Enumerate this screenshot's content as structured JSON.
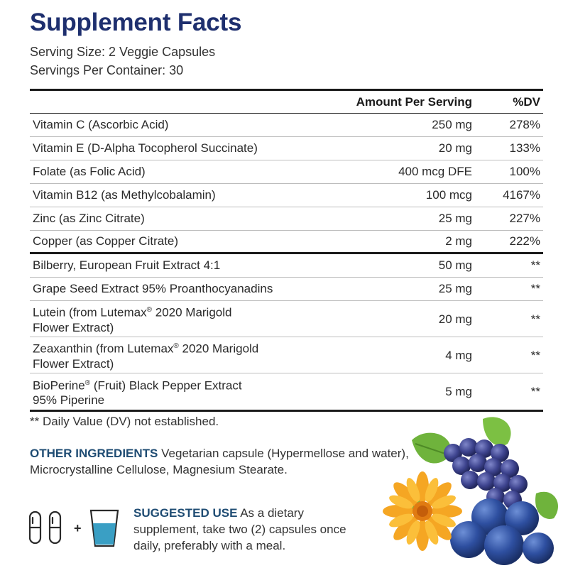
{
  "title": "Supplement Facts",
  "serving_size": "Serving Size: 2 Veggie Capsules",
  "servings_per_container": "Servings Per Container: 30",
  "table": {
    "header": {
      "amount": "Amount Per Serving",
      "dv": "%DV"
    },
    "vitamins": [
      {
        "name": "Vitamin C (Ascorbic Acid)",
        "amount": "250 mg",
        "dv": "278%"
      },
      {
        "name": "Vitamin E (D-Alpha Tocopherol Succinate)",
        "amount": "20 mg",
        "dv": "133%"
      },
      {
        "name": "Folate (as Folic Acid)",
        "amount": "400 mcg DFE",
        "dv": "100%"
      },
      {
        "name": "Vitamin B12 (as Methylcobalamin)",
        "amount": "100 mcg",
        "dv": "4167%"
      },
      {
        "name": "Zinc (as Zinc Citrate)",
        "amount": "25 mg",
        "dv": "227%"
      },
      {
        "name": "Copper (as Copper Citrate)",
        "amount": "2 mg",
        "dv": "222%"
      }
    ],
    "extracts": [
      {
        "name": "Bilberry, European Fruit Extract 4:1",
        "amount": "50 mg",
        "dv": "**"
      },
      {
        "name": "Grape Seed Extract 95% Proanthocyanadins",
        "amount": "25 mg",
        "dv": "**"
      },
      {
        "line1_pre": "Lutein (from Lutemax",
        "line1_post": " 2020 Marigold",
        "line2": "Flower Extract)",
        "amount": "20 mg",
        "dv": "**"
      },
      {
        "line1_pre": "Zeaxanthin (from Lutemax",
        "line1_post": " 2020 Marigold",
        "line2": "Flower Extract)",
        "amount": "4 mg",
        "dv": "**"
      },
      {
        "line1_pre": "BioPerine",
        "line1_post": " (Fruit) Black Pepper Extract",
        "line2": "95% Piperine",
        "amount": "5 mg",
        "dv": "**"
      }
    ],
    "registered_mark": "®"
  },
  "footnote": "** Daily Value (DV) not established.",
  "other_ingredients": {
    "label": "OTHER INGREDIENTS",
    "text": " Vegetarian capsule (Hypermellose and water), Microcrystalline Cellulose, Magnesium Stearate."
  },
  "suggested_use": {
    "label": "SUGGESTED USE",
    "text": " As a dietary supplement, take two (2) capsules once daily, preferably with a meal."
  },
  "icons": {
    "capsule": "capsule-icon",
    "plus": "+",
    "water": "water-glass-icon",
    "accent": "#3a9fc4"
  },
  "colors": {
    "title": "#1e2f6e",
    "label": "#1f4c73"
  }
}
